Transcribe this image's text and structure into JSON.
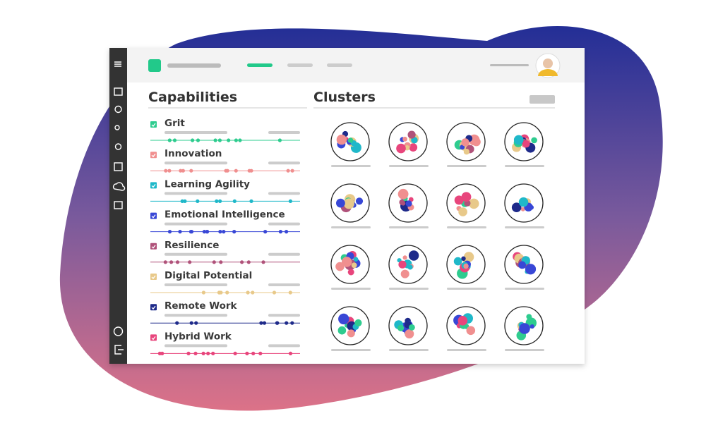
{
  "capabilities": {
    "title": "Capabilities",
    "items": [
      {
        "label": "Grit"
      },
      {
        "label": "Innovation"
      },
      {
        "label": "Learning Agility"
      },
      {
        "label": "Emotional Intelligence"
      },
      {
        "label": "Resilience"
      },
      {
        "label": "Digital Potential"
      },
      {
        "label": "Remote Work"
      },
      {
        "label": "Hybrid Work"
      }
    ]
  },
  "clusters": {
    "title": "Clusters"
  }
}
